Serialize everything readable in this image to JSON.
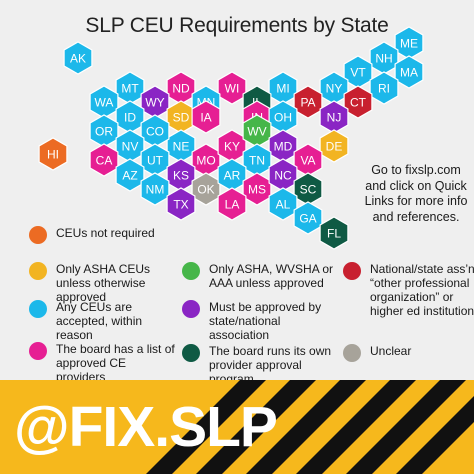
{
  "title": "SLP CEU Requirements by State",
  "side_note": "Go to fixslp.com and click on Quick Links for more info and references.",
  "handle": "@FIX.SLP",
  "colors": {
    "orange": "#ec6b23",
    "yellow": "#f2b422",
    "blue": "#1cb8ea",
    "pink": "#e61f93",
    "green": "#46b649",
    "purple": "#8a25c4",
    "teal": "#0f5a44",
    "red": "#c8202f",
    "gray": "#a7a39a",
    "footer_yellow": "#f6b81c",
    "stripe_black": "#111111"
  },
  "legend": [
    {
      "key": "orange",
      "label": "CEUs not required"
    },
    {
      "key": "green",
      "label": "Only ASHA, WVSHA or AAA unless approved"
    },
    {
      "key": "red",
      "label": "National/state ass’n or “other professional organization” or higher ed institution"
    },
    {
      "key": "yellow",
      "label": "Only ASHA CEUs unless otherwise approved"
    },
    {
      "key": "purple",
      "label": "Must be approved by state/national association"
    },
    {
      "key": "blue",
      "label": "Any CEUs are accepted, within reason"
    },
    {
      "key": "teal",
      "label": "The board runs its own provider approval program"
    },
    {
      "key": "pink",
      "label": "The board has a list of approved CE providers"
    },
    {
      "key": "gray",
      "label": "Unclear"
    }
  ],
  "chart_data": {
    "type": "hex tile map",
    "title": "SLP CEU Requirements by State",
    "states": [
      {
        "abbr": "AK",
        "category": "blue"
      },
      {
        "abbr": "ME",
        "category": "blue"
      },
      {
        "abbr": "NH",
        "category": "blue"
      },
      {
        "abbr": "VT",
        "category": "blue"
      },
      {
        "abbr": "MA",
        "category": "blue"
      },
      {
        "abbr": "MT",
        "category": "blue"
      },
      {
        "abbr": "ND",
        "category": "pink"
      },
      {
        "abbr": "WI",
        "category": "pink"
      },
      {
        "abbr": "MI",
        "category": "blue"
      },
      {
        "abbr": "NY",
        "category": "blue"
      },
      {
        "abbr": "RI",
        "category": "blue"
      },
      {
        "abbr": "WA",
        "category": "blue"
      },
      {
        "abbr": "WY",
        "category": "purple"
      },
      {
        "abbr": "SD",
        "category": "yellow"
      },
      {
        "abbr": "MN",
        "category": "blue"
      },
      {
        "abbr": "IL",
        "category": "teal"
      },
      {
        "abbr": "PA",
        "category": "red"
      },
      {
        "abbr": "CT",
        "category": "red"
      },
      {
        "abbr": "ID",
        "category": "blue"
      },
      {
        "abbr": "NE",
        "category": "blue"
      },
      {
        "abbr": "IA",
        "category": "pink"
      },
      {
        "abbr": "IN",
        "category": "pink"
      },
      {
        "abbr": "OH",
        "category": "blue"
      },
      {
        "abbr": "NJ",
        "category": "purple"
      },
      {
        "abbr": "OR",
        "category": "blue"
      },
      {
        "abbr": "CO",
        "category": "blue"
      },
      {
        "abbr": "MO",
        "category": "pink"
      },
      {
        "abbr": "KY",
        "category": "pink"
      },
      {
        "abbr": "WV",
        "category": "green"
      },
      {
        "abbr": "MD",
        "category": "purple"
      },
      {
        "abbr": "DE",
        "category": "yellow"
      },
      {
        "abbr": "HI",
        "category": "orange"
      },
      {
        "abbr": "NV",
        "category": "blue"
      },
      {
        "abbr": "UT",
        "category": "blue"
      },
      {
        "abbr": "KS",
        "category": "purple"
      },
      {
        "abbr": "TN",
        "category": "blue"
      },
      {
        "abbr": "VA",
        "category": "pink"
      },
      {
        "abbr": "CA",
        "category": "pink"
      },
      {
        "abbr": "AZ",
        "category": "blue"
      },
      {
        "abbr": "NM",
        "category": "blue"
      },
      {
        "abbr": "OK",
        "category": "gray"
      },
      {
        "abbr": "AR",
        "category": "blue"
      },
      {
        "abbr": "MS",
        "category": "pink"
      },
      {
        "abbr": "NC",
        "category": "purple"
      },
      {
        "abbr": "SC",
        "category": "teal"
      },
      {
        "abbr": "TX",
        "category": "purple"
      },
      {
        "abbr": "LA",
        "category": "pink"
      },
      {
        "abbr": "AL",
        "category": "blue"
      },
      {
        "abbr": "GA",
        "category": "blue"
      },
      {
        "abbr": "FL",
        "category": "teal"
      }
    ]
  }
}
